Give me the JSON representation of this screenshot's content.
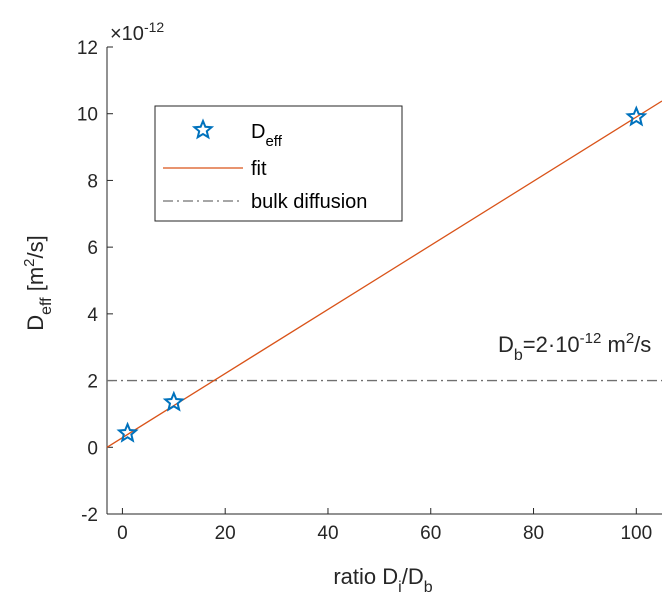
{
  "chart_data": {
    "type": "scatter",
    "xlabel": "ratio D",
    "xlabel_sub1": "i",
    "xlabel_mid": "/D",
    "xlabel_sub2": "b",
    "ylabel_main": "D",
    "ylabel_sub": "eff",
    "ylabel_unit_pre": " [m",
    "ylabel_unit_sup": "2",
    "ylabel_unit_post": "/s]",
    "exponent_prefix": "×10",
    "exponent_power": "-12",
    "xlim": [
      -3,
      105
    ],
    "ylim": [
      -2,
      12
    ],
    "xticks": [
      "0",
      "20",
      "40",
      "60",
      "80",
      "100"
    ],
    "yticks": [
      "-2",
      "0",
      "2",
      "4",
      "6",
      "8",
      "10",
      "12"
    ],
    "grid": false,
    "legend_position": "top-left",
    "series": [
      {
        "name": "D",
        "name_sub": "eff",
        "kind": "markers",
        "marker": "star",
        "color": "#0072BD",
        "x": [
          1,
          10,
          100
        ],
        "y": [
          0.42,
          1.35,
          9.9
        ]
      },
      {
        "name": "fit",
        "kind": "line",
        "color": "#D95319",
        "x": [
          -3,
          105
        ],
        "y": [
          0.0,
          10.38
        ]
      },
      {
        "name": "bulk diffusion",
        "kind": "dashdot",
        "color": "#707070",
        "x": [
          -3,
          105
        ],
        "y": [
          2,
          2
        ]
      }
    ],
    "annotation": {
      "pre": "D",
      "sub": "b",
      "mid": "=2·10",
      "sup": "-12",
      "unit": " m",
      "unit_sup": "2",
      "unit_post": "/s",
      "x": 88,
      "y": 2.85
    }
  }
}
